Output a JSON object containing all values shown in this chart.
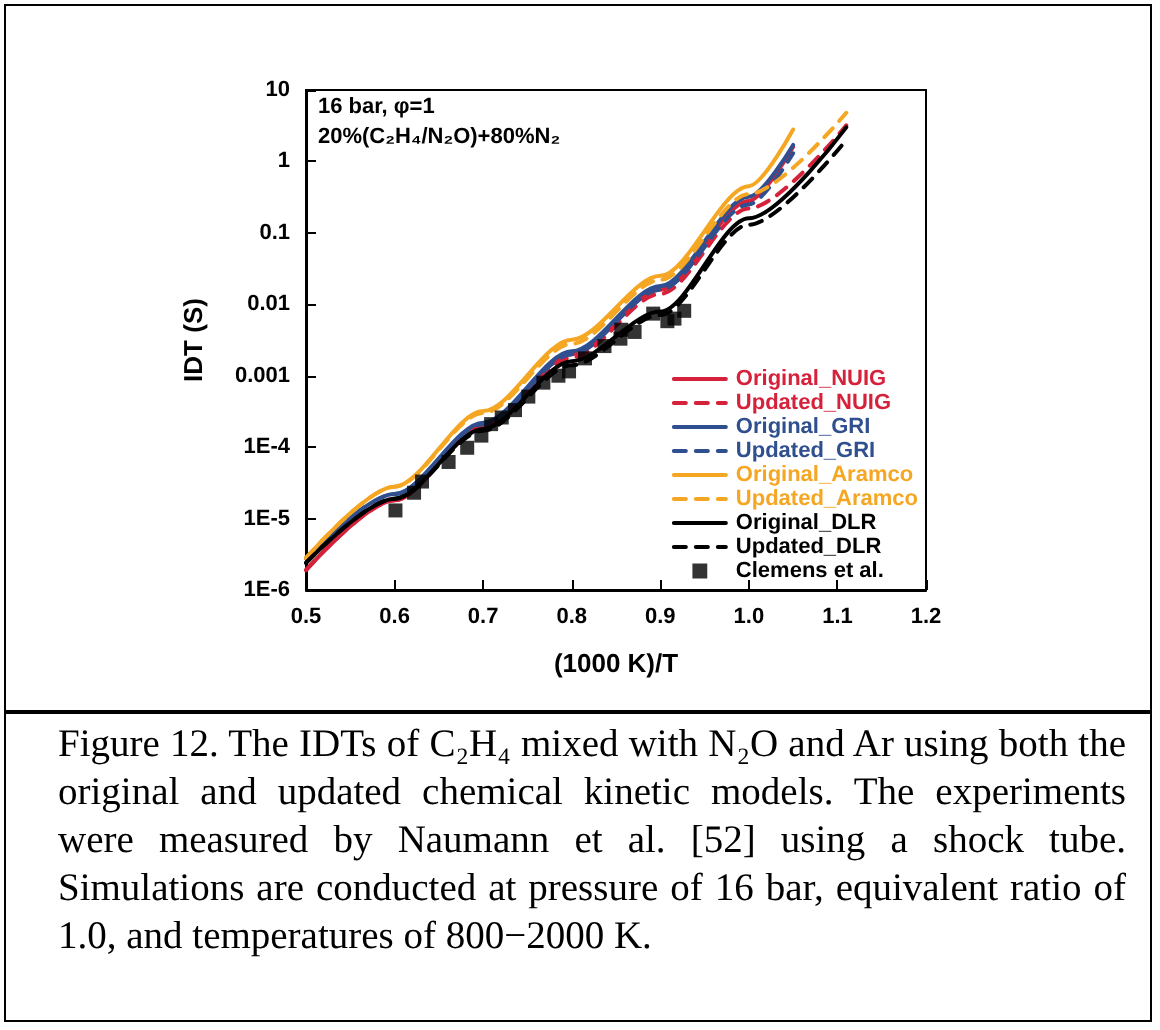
{
  "chart_data": {
    "type": "line",
    "xlabel": "(1000 K)/T",
    "ylabel": "IDT (S)",
    "annotations": [
      "16 bar, φ=1",
      "20%(C₂H₄/N₂O)+80%N₂",
      "Figure 12. The IDTs of C₂H₄ mixed with N₂O and Ar using both the original and updated chemical kinetic models. The experiments were measured by Naumann et al. [52] using a shock tube. Simulations are conducted at pressure of 16 bar, equivalent ratio of 1.0, and temperatures of 800−2000 K."
    ],
    "xlim": [
      0.5,
      1.2
    ],
    "xticks": [
      0.5,
      0.6,
      0.7,
      0.8,
      0.9,
      {
        "value": 1,
        "label": "1.0"
      },
      1.1,
      1.2
    ],
    "ylim": [
      1e-06,
      10
    ],
    "yticks": [
      {
        "value": 1e-06,
        "label": "1E-6"
      },
      {
        "value": 1e-05,
        "label": "1E-5"
      },
      {
        "value": 0.0001,
        "label": "1E-4"
      },
      0.001,
      0.01,
      0.1,
      1,
      10
    ],
    "log": "y",
    "grid": false,
    "legend": "bottom right",
    "series": [
      {
        "name": "Original_NUIG",
        "line_style": "solid",
        "color": "#d6213a",
        "x": [
          0.5,
          0.6,
          0.7,
          0.8,
          0.9,
          1.0,
          1.05
        ],
        "values": [
          1.9e-06,
          1.8e-05,
          0.0002,
          0.002,
          0.016,
          0.28,
          1.6
        ]
      },
      {
        "name": "Updated_NUIG",
        "line_style": "dashed",
        "color": "#d6213a",
        "x": [
          0.5,
          0.6,
          0.7,
          0.8,
          0.9,
          1.0,
          1.11
        ],
        "values": [
          1.9e-06,
          1.8e-05,
          0.00019,
          0.0018,
          0.014,
          0.22,
          3.2
        ]
      },
      {
        "name": "Original_GRI",
        "line_style": "solid",
        "color": "#2f4f8f",
        "x": [
          0.5,
          0.6,
          0.7,
          0.8,
          0.9,
          1.0,
          1.05
        ],
        "values": [
          2.8e-06,
          2.2e-05,
          0.00022,
          0.0022,
          0.018,
          0.32,
          1.7
        ]
      },
      {
        "name": "Updated_GRI",
        "line_style": "dashed",
        "color": "#2f4f8f",
        "x": [
          0.5,
          0.6,
          0.7,
          0.8,
          0.9,
          1.0,
          1.05
        ],
        "values": [
          2.8e-06,
          2.2e-05,
          0.00021,
          0.002,
          0.016,
          0.25,
          1.3
        ]
      },
      {
        "name": "Original_Aramco",
        "line_style": "solid",
        "color": "#f5a623",
        "x": [
          0.5,
          0.6,
          0.7,
          0.8,
          0.9,
          1.0,
          1.05
        ],
        "values": [
          2.8e-06,
          2.8e-05,
          0.00032,
          0.0032,
          0.025,
          0.45,
          2.8
        ]
      },
      {
        "name": "Updated_Aramco",
        "line_style": "dashed",
        "color": "#f5a623",
        "x": [
          0.5,
          0.6,
          0.7,
          0.8,
          0.9,
          1.0,
          1.11
        ],
        "values": [
          2.8e-06,
          2.8e-05,
          0.0003,
          0.0028,
          0.022,
          0.35,
          4.8
        ]
      },
      {
        "name": "Original_DLR",
        "line_style": "solid",
        "color": "#000000",
        "x": [
          0.5,
          0.6,
          0.7,
          0.8,
          0.9,
          1.0,
          1.11
        ],
        "values": [
          2.4e-06,
          1.9e-05,
          0.00018,
          0.0016,
          0.0079,
          0.16,
          3.0
        ]
      },
      {
        "name": "Updated_DLR",
        "line_style": "dashed",
        "color": "#000000",
        "x": [
          0.5,
          0.6,
          0.7,
          0.8,
          0.9,
          1.0,
          1.11
        ],
        "values": [
          2.4e-06,
          1.9e-05,
          0.00017,
          0.0014,
          0.0071,
          0.13,
          2.0
        ]
      },
      {
        "name": "Clemens et al.",
        "type": "scatter",
        "marker": "square",
        "color": "#000000",
        "x": [
          0.601,
          0.622,
          0.631,
          0.661,
          0.682,
          0.698,
          0.709,
          0.721,
          0.736,
          0.751,
          0.768,
          0.785,
          0.797,
          0.815,
          0.837,
          0.855,
          0.856,
          0.871,
          0.892,
          0.908,
          0.916,
          0.927
        ],
        "values": [
          1.3e-05,
          2.3e-05,
          3.3e-05,
          6.2e-05,
          9.8e-05,
          0.000145,
          0.00021,
          0.00026,
          0.00033,
          0.00051,
          0.0008,
          0.001,
          0.00115,
          0.00175,
          0.0026,
          0.0033,
          0.0044,
          0.0041,
          0.0074,
          0.0058,
          0.0063,
          0.0081
        ]
      }
    ]
  }
}
